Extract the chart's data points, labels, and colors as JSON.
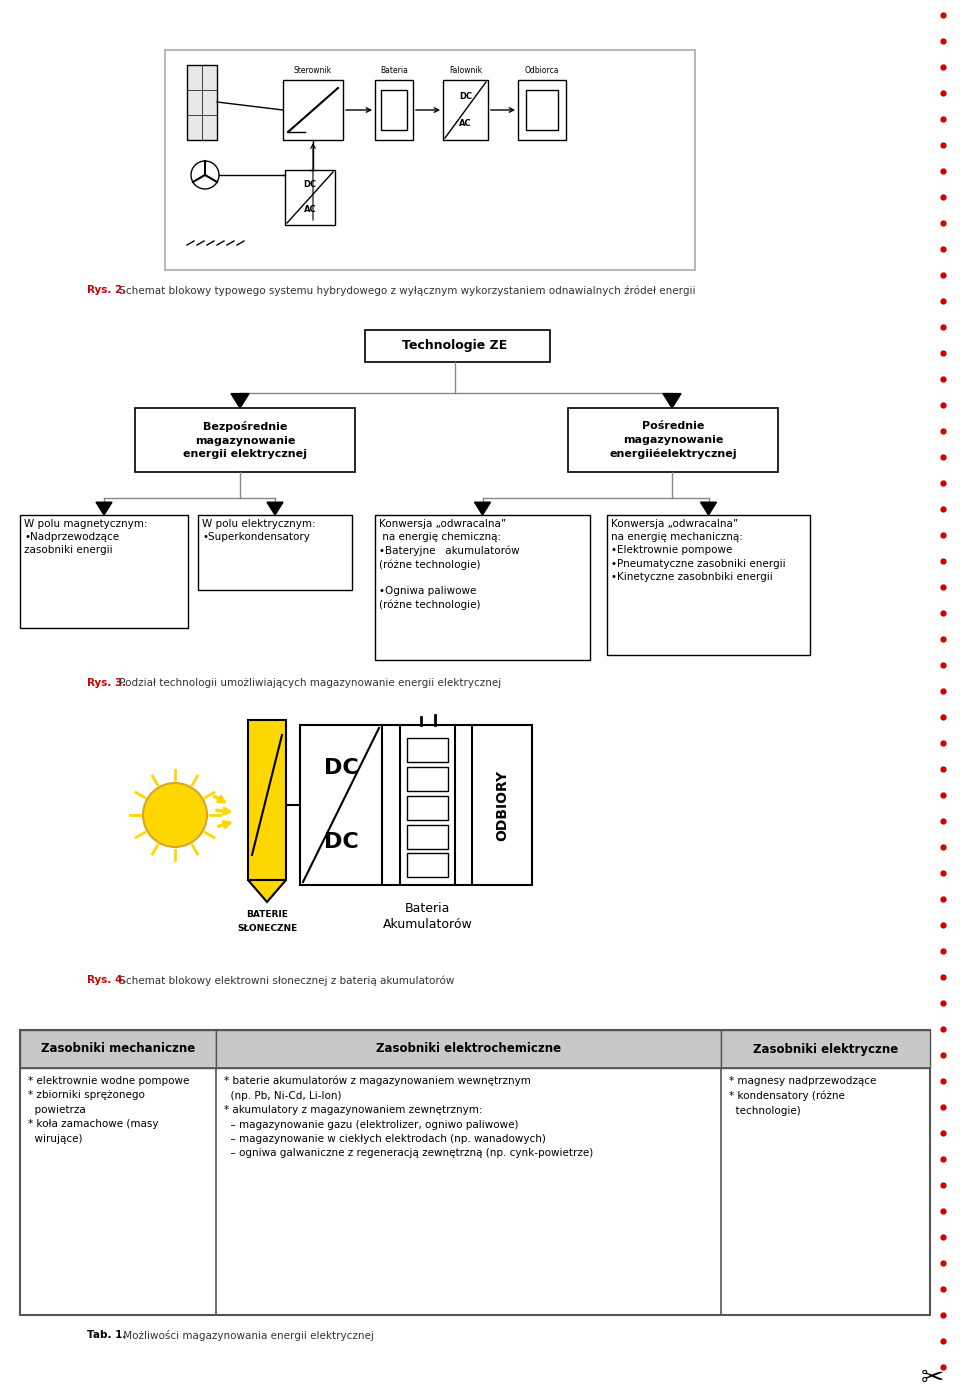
{
  "bg_color": "#ffffff",
  "red_dot_color": "#cc0000",
  "fig2_caption_prefix": "Rys. 2.",
  "fig2_caption_text": " Schemat blokowy typowego systemu hybrydowego z wyłącznym wykorzystaniem odnawialnych źródeł energii",
  "fig3_caption_prefix": "Rys. 3.",
  "fig3_caption_text": " Podział technologii umożliwiających magazynowanie energii elektrycznej",
  "fig4_caption_prefix": "Rys. 4.",
  "fig4_caption_text": " Schemat blokowy elektrowni słonecznej z baterią akumulatorów",
  "tree_root": "Technologie ZE",
  "tree_left": "Bezpośrednie\nmagazynowanie\nenergii elektrycznej",
  "tree_right": "Pośrednie\nmagazynowanie\nenergiiéelektrycznej",
  "tree_ll": "W polu magnetycznym:\n•Nadprzewodzące\nzasobniki energii",
  "tree_lr": "W polu elektrycznym:\n•Superkondensatory",
  "tree_rl": "Konwersja „odwracalna”\n na energię chemiczną:\n•Bateryjne   akumulatorów\n(różne technologie)\n\n•Ogniwa paliwowe\n(różne technologie)",
  "tree_rr": "Konwersja „odwracalna”\nna energię mechaniczną:\n•Elektrownie pompowe\n•Pneumatyczne zasobniki energii\n•Kinetyczne zasobnbiki energii",
  "table_headers": [
    "Zasobniki mechaniczne",
    "Zasobniki elektrochemiczne",
    "Zasobniki elektryczne"
  ],
  "table_col1": "* elektrownie wodne pompowe\n* zbiorniki sprężonego\n  powietrza\n* koła zamachowe (masy\n  wirujące)",
  "table_col2": "* baterie akumulatorów z magazynowaniem wewnętrznym\n  (np. Pb, Ni-Cd, Li-Ion)\n* akumulatory z magazynowaniem zewnętrznym:\n  – magazynowanie gazu (elektrolizer, ogniwo paliwowe)\n  – magazynowanie w ciekłych elektrodach (np. wanadowych)\n  – ogniwa galwaniczne z regeneracją zewnętrzną (np. cynk-powietrze)",
  "table_col3": "* magnesy nadprzewodzące\n* kondensatory (różne\n  technologie)",
  "tab1_caption_prefix": "Tab. 1.",
  "tab1_caption_text": " Możliwości magazynowania energii elektrycznej",
  "header_bg": "#c8c8c8",
  "table_border": "#555555",
  "arrow_gray": "#888888"
}
